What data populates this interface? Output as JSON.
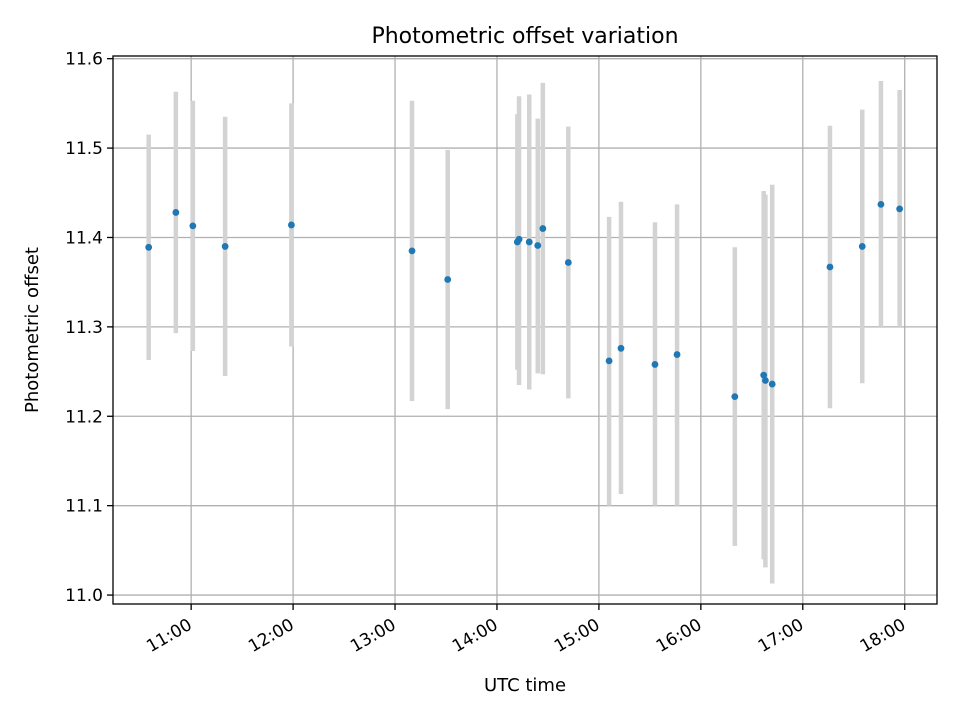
{
  "chart_data": {
    "type": "scatter",
    "title": "Photometric offset variation",
    "xlabel": "UTC time",
    "ylabel": "Photometric offset",
    "xlim": [
      "10:14",
      "18:19"
    ],
    "ylim": [
      10.99,
      11.603
    ],
    "x_ticks": [
      "11:00",
      "12:00",
      "13:00",
      "14:00",
      "15:00",
      "16:00",
      "17:00",
      "18:00"
    ],
    "y_ticks": [
      11.0,
      11.1,
      11.2,
      11.3,
      11.4,
      11.5,
      11.6
    ],
    "grid": true,
    "colors": {
      "point": "#1f77b4",
      "errorbar": "#d3d3d3"
    },
    "points": [
      {
        "x": "10:35",
        "y": 11.389,
        "ylow": 11.263,
        "yhigh": 11.515
      },
      {
        "x": "10:51",
        "y": 11.428,
        "ylow": 11.293,
        "yhigh": 11.563
      },
      {
        "x": "11:01",
        "y": 11.413,
        "ylow": 11.273,
        "yhigh": 11.553
      },
      {
        "x": "11:20",
        "y": 11.39,
        "ylow": 11.245,
        "yhigh": 11.535
      },
      {
        "x": "11:59",
        "y": 11.414,
        "ylow": 11.278,
        "yhigh": 11.55
      },
      {
        "x": "13:10",
        "y": 11.385,
        "ylow": 11.217,
        "yhigh": 11.553
      },
      {
        "x": "13:31",
        "y": 11.353,
        "ylow": 11.208,
        "yhigh": 11.498
      },
      {
        "x": "14:12",
        "y": 11.395,
        "ylow": 11.252,
        "yhigh": 11.538
      },
      {
        "x": "14:13",
        "y": 11.398,
        "ylow": 11.235,
        "yhigh": 11.558
      },
      {
        "x": "14:19",
        "y": 11.395,
        "ylow": 11.23,
        "yhigh": 11.56
      },
      {
        "x": "14:24",
        "y": 11.391,
        "ylow": 11.248,
        "yhigh": 11.533
      },
      {
        "x": "14:27",
        "y": 11.41,
        "ylow": 11.247,
        "yhigh": 11.573
      },
      {
        "x": "14:42",
        "y": 11.372,
        "ylow": 11.22,
        "yhigh": 11.524
      },
      {
        "x": "15:06",
        "y": 11.262,
        "ylow": 11.1,
        "yhigh": 11.423
      },
      {
        "x": "15:13",
        "y": 11.276,
        "ylow": 11.113,
        "yhigh": 11.44
      },
      {
        "x": "15:33",
        "y": 11.258,
        "ylow": 11.1,
        "yhigh": 11.417
      },
      {
        "x": "15:46",
        "y": 11.269,
        "ylow": 11.1,
        "yhigh": 11.437
      },
      {
        "x": "16:20",
        "y": 11.222,
        "ylow": 11.055,
        "yhigh": 11.389
      },
      {
        "x": "16:37",
        "y": 11.246,
        "ylow": 11.04,
        "yhigh": 11.452
      },
      {
        "x": "16:38",
        "y": 11.24,
        "ylow": 11.031,
        "yhigh": 11.448
      },
      {
        "x": "16:42",
        "y": 11.236,
        "ylow": 11.013,
        "yhigh": 11.459
      },
      {
        "x": "17:16",
        "y": 11.367,
        "ylow": 11.209,
        "yhigh": 11.525
      },
      {
        "x": "17:35",
        "y": 11.39,
        "ylow": 11.237,
        "yhigh": 11.543
      },
      {
        "x": "17:46",
        "y": 11.437,
        "ylow": 11.3,
        "yhigh": 11.575
      },
      {
        "x": "17:57",
        "y": 11.432,
        "ylow": 11.3,
        "yhigh": 11.565
      }
    ]
  }
}
